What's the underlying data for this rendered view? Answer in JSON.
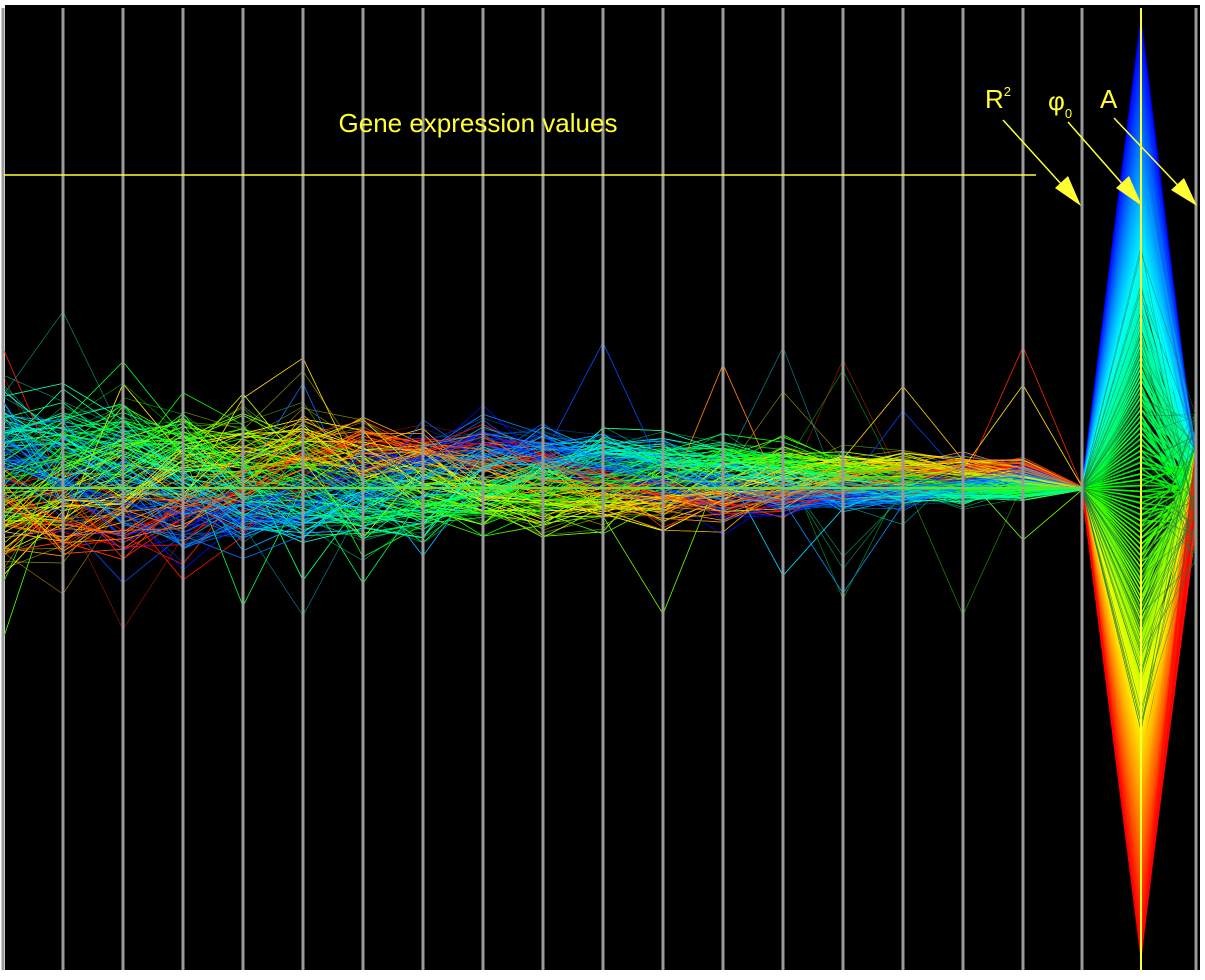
{
  "chart_data": {
    "type": "line",
    "subtype": "parallel-coordinates",
    "title": "Gene expression values",
    "annotations": [
      {
        "id": "r2",
        "text": "R",
        "superscript": "2"
      },
      {
        "id": "phi0",
        "text": "φ",
        "subscript": "0"
      },
      {
        "id": "amplitude",
        "text": "A"
      }
    ],
    "axes": {
      "expression_axis_count": 18,
      "extra_axes": [
        "R²",
        "φ₀",
        "A"
      ]
    },
    "grid": true,
    "colormap": "phase (rainbow: red-yellow-green-cyan-blue)"
  },
  "colors": {
    "background": "#000000",
    "axis_line": "#9a9a9a",
    "label": "#ffff33",
    "baseline": "#66dd33"
  }
}
